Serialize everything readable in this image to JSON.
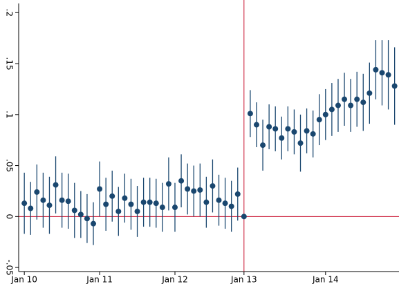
{
  "chart_data": {
    "type": "scatter",
    "x": [
      0,
      1,
      2,
      3,
      4,
      5,
      6,
      7,
      8,
      9,
      10,
      11,
      12,
      13,
      14,
      15,
      16,
      17,
      18,
      19,
      20,
      21,
      22,
      23,
      24,
      25,
      26,
      27,
      28,
      29,
      30,
      31,
      32,
      33,
      34,
      35,
      36,
      37,
      38,
      39,
      40,
      41,
      42,
      43,
      44,
      45,
      46,
      47,
      48,
      49,
      50,
      51,
      52,
      53,
      54,
      55,
      56,
      57,
      58,
      59
    ],
    "values": [
      0.013,
      0.008,
      0.024,
      0.016,
      0.011,
      0.031,
      0.016,
      0.015,
      0.006,
      0.002,
      -0.002,
      -0.007,
      0.027,
      0.012,
      0.02,
      0.005,
      0.018,
      0.012,
      0.005,
      0.014,
      0.014,
      0.013,
      0.009,
      0.032,
      0.009,
      0.035,
      0.027,
      0.025,
      0.026,
      0.014,
      0.03,
      0.016,
      0.013,
      0.01,
      0.022,
      0,
      0.101,
      0.09,
      0.07,
      0.088,
      0.086,
      0.077,
      0.086,
      0.083,
      0.072,
      0.084,
      0.081,
      0.095,
      0.1,
      0.105,
      0.109,
      0.115,
      0.109,
      0.115,
      0.112,
      0.121,
      0.144,
      0.141,
      0.139,
      0.128
    ],
    "errors": [
      0.03,
      0.026,
      0.027,
      0.027,
      0.028,
      0.028,
      0.027,
      0.027,
      0.027,
      0.023,
      0.024,
      0.021,
      0.027,
      0.026,
      0.025,
      0.024,
      0.024,
      0.025,
      0.025,
      0.024,
      0.024,
      0.024,
      0.024,
      0.026,
      0.024,
      0.026,
      0.025,
      0.025,
      0.026,
      0.025,
      0.026,
      0.025,
      0.025,
      0.025,
      0.026,
      0,
      0.023,
      0.022,
      0.025,
      0.022,
      0.022,
      0.021,
      0.022,
      0.022,
      0.028,
      0.022,
      0.023,
      0.025,
      0.025,
      0.026,
      0.026,
      0.026,
      0.026,
      0.027,
      0.028,
      0.03,
      0.029,
      0.032,
      0.034,
      0.038
    ],
    "color": "#1a476f",
    "xlim": [
      -0.9,
      59.7
    ],
    "ylim": [
      -0.054,
      0.209
    ],
    "xticks": [
      {
        "value": 0,
        "label": "Jan 10"
      },
      {
        "value": 12,
        "label": "Jan 11"
      },
      {
        "value": 24,
        "label": "Jan 12"
      },
      {
        "value": 35,
        "label": "Jan 13"
      },
      {
        "value": 48,
        "label": "Jan 14"
      }
    ],
    "yticks": [
      {
        "value": -0.05,
        "label": "-.05"
      },
      {
        "value": 0,
        "label": "0"
      },
      {
        "value": 0.05,
        "label": ".05"
      },
      {
        "value": 0.1,
        "label": ".1"
      },
      {
        "value": 0.15,
        "label": ".15"
      },
      {
        "value": 0.2,
        "label": ".2"
      }
    ],
    "reference_lines": {
      "x": 35,
      "y": 0,
      "color": "#c8102e"
    }
  }
}
